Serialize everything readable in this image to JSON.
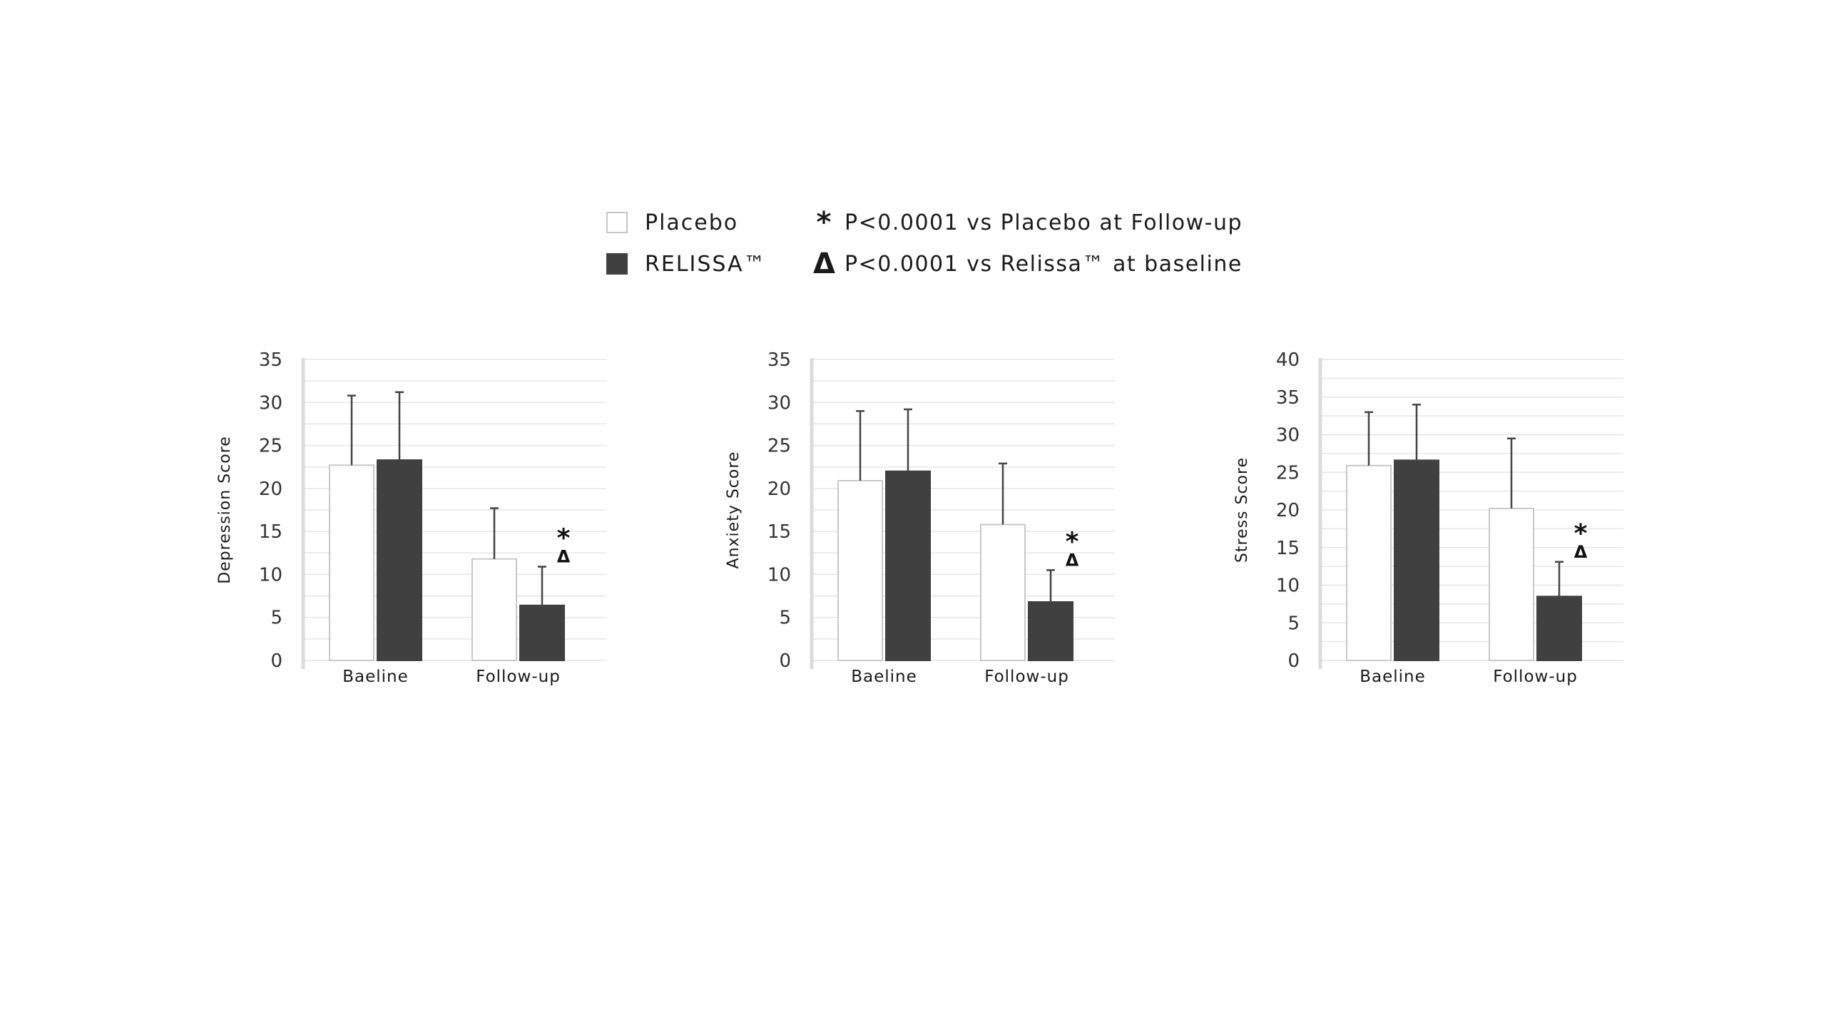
{
  "legend": {
    "series": [
      {
        "label": "Placebo",
        "color": "#ffffff"
      },
      {
        "label": "RELISSA™",
        "color": "#404040"
      }
    ],
    "notes": [
      {
        "symbol": "*",
        "text": "P<0.0001 vs Placebo at Follow-up"
      },
      {
        "symbol": "Δ",
        "text": "P<0.0001 vs Relissa™ at baseline"
      }
    ]
  },
  "colors": {
    "placebo_fill": "#ffffff",
    "placebo_stroke": "#c8c8c8",
    "relissa_fill": "#404040",
    "grid": "#e6e6e6",
    "axis": "#dcdcdc",
    "text": "#1a1a1a"
  },
  "chart_data": [
    {
      "type": "bar",
      "ylabel": "Depression Score",
      "categories": [
        "Baeline",
        "Follow-up"
      ],
      "ylim": [
        0,
        35
      ],
      "yticks": [
        0,
        5,
        10,
        15,
        20,
        25,
        30,
        35
      ],
      "series": [
        {
          "name": "Placebo",
          "values": [
            22.7,
            11.8
          ],
          "errors": [
            8.1,
            5.9
          ]
        },
        {
          "name": "RELISSA™",
          "values": [
            23.3,
            6.4
          ],
          "errors": [
            7.9,
            4.5
          ]
        }
      ],
      "annotations": [
        {
          "category": "Follow-up",
          "series": "RELISSA™",
          "symbols": [
            "*",
            "Δ"
          ]
        }
      ]
    },
    {
      "type": "bar",
      "ylabel": "Anxiety Score",
      "categories": [
        "Baeline",
        "Follow-up"
      ],
      "ylim": [
        0,
        35
      ],
      "yticks": [
        0,
        5,
        10,
        15,
        20,
        25,
        30,
        35
      ],
      "series": [
        {
          "name": "Placebo",
          "values": [
            20.9,
            15.8
          ],
          "errors": [
            8.1,
            7.1
          ]
        },
        {
          "name": "RELISSA™",
          "values": [
            22.0,
            6.8
          ],
          "errors": [
            7.2,
            3.7
          ]
        }
      ],
      "annotations": [
        {
          "category": "Follow-up",
          "series": "RELISSA™",
          "symbols": [
            "*",
            "Δ"
          ]
        }
      ]
    },
    {
      "type": "bar",
      "ylabel": "Stress Score",
      "categories": [
        "Baeline",
        "Follow-up"
      ],
      "ylim": [
        0,
        40
      ],
      "yticks": [
        0,
        5,
        10,
        15,
        20,
        25,
        30,
        35,
        40
      ],
      "series": [
        {
          "name": "Placebo",
          "values": [
            25.9,
            20.2
          ],
          "errors": [
            7.1,
            9.3
          ]
        },
        {
          "name": "RELISSA™",
          "values": [
            26.6,
            8.5
          ],
          "errors": [
            7.4,
            4.6
          ]
        }
      ],
      "annotations": [
        {
          "category": "Follow-up",
          "series": "RELISSA™",
          "symbols": [
            "*",
            "Δ"
          ]
        }
      ]
    }
  ]
}
